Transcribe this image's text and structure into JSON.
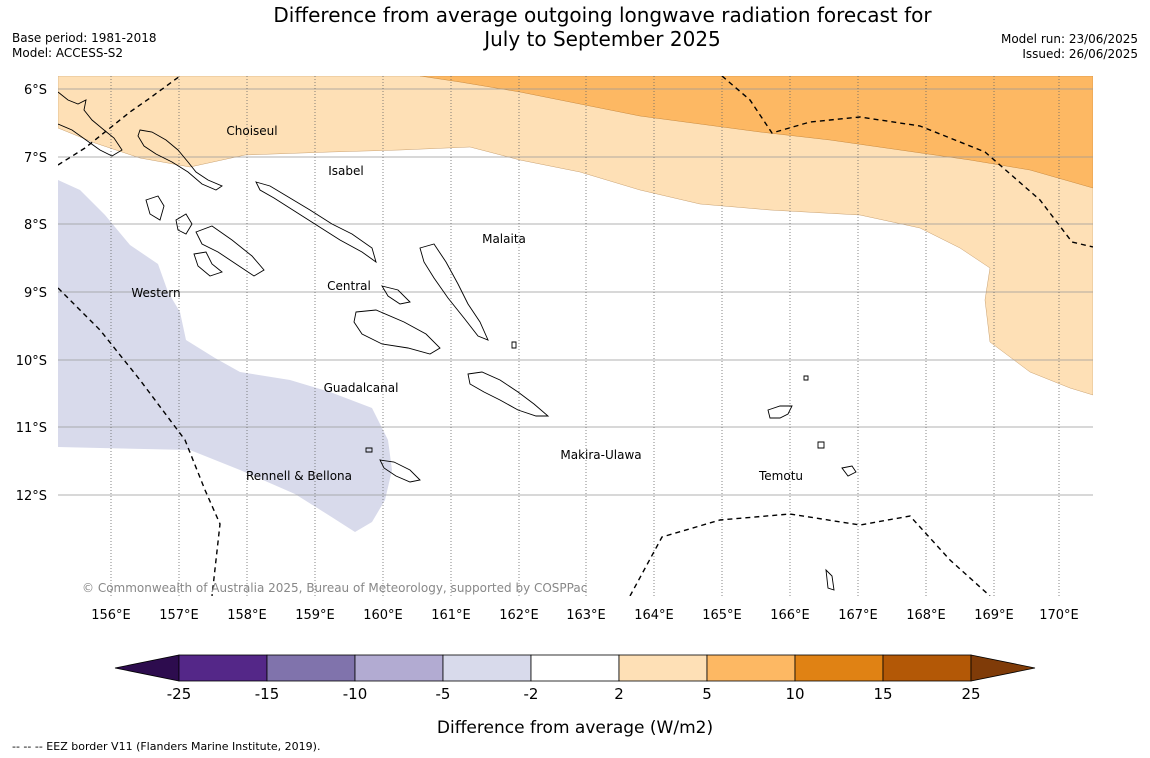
{
  "title_line1": "Difference from average outgoing longwave radiation forecast for",
  "title_line2": "July to September 2025",
  "base_period": "Base period: 1981-2018",
  "model": "Model: ACCESS-S2",
  "model_run": "Model run: 23/06/2025",
  "issued": "Issued: 26/06/2025",
  "copyright": "© Commonwealth of Australia 2025, Bureau of Meteorology, supported by COSPPac",
  "lat_labels": [
    "6°S",
    "7°S",
    "8°S",
    "9°S",
    "10°S",
    "11°S",
    "12°S"
  ],
  "lon_labels": [
    "156°E",
    "157°E",
    "158°E",
    "159°E",
    "160°E",
    "161°E",
    "162°E",
    "163°E",
    "164°E",
    "165°E",
    "166°E",
    "167°E",
    "168°E",
    "169°E",
    "170°E"
  ],
  "regions": [
    "Choiseul",
    "Isabel",
    "Malaita",
    "Western",
    "Central",
    "Guadalcanal",
    "Makira-Ulawa",
    "Rennell & Bellona",
    "Temotu"
  ],
  "colorbar": {
    "ticks": [
      "-25",
      "-15",
      "-10",
      "-5",
      "-2",
      "2",
      "5",
      "10",
      "15",
      "25"
    ],
    "colors": [
      "#2d0c4e",
      "#542788",
      "#8073ac",
      "#b2abd2",
      "#d8daeb",
      "#ffffff",
      "#fee0b6",
      "#fdb863",
      "#e08214",
      "#b35806",
      "#7f3b08"
    ],
    "label": "Difference from average (W/m2)"
  },
  "legend_eez": "--  --  -- EEZ border V11 (Flanders Marine Institute, 2019)."
}
